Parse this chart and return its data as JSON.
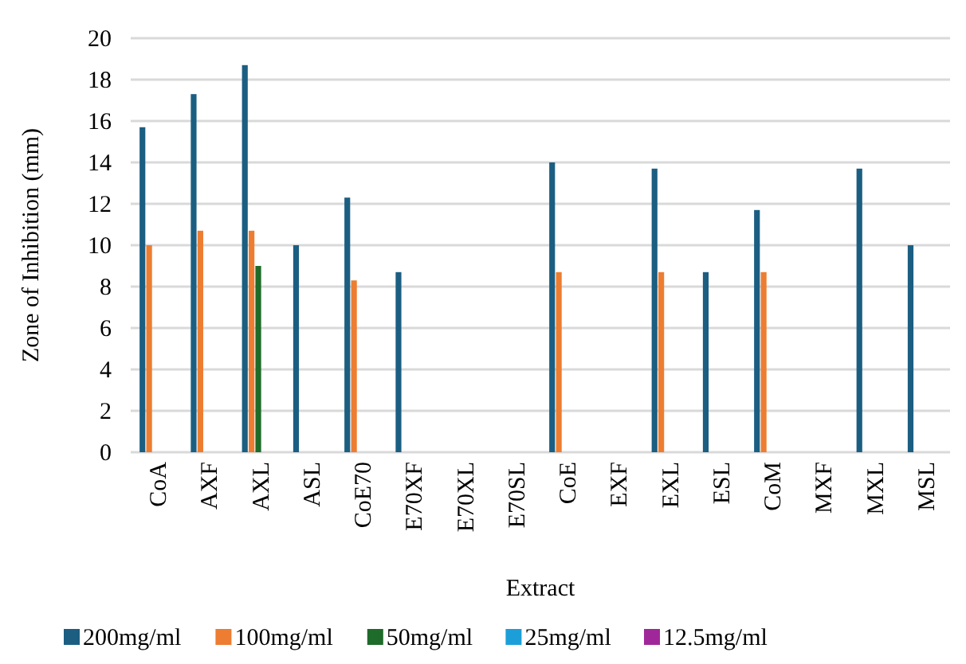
{
  "chart_data": {
    "type": "bar",
    "xlabel": "Extract",
    "ylabel": "Zone of Inhibition (mm)",
    "categories": [
      "CoA",
      "AXF",
      "AXL",
      "ASL",
      "CoE70",
      "E70XF",
      "E70XL",
      "E70SL",
      "CoE",
      "EXF",
      "EXL",
      "ESL",
      "CoM",
      "MXF",
      "MXL",
      "MSL"
    ],
    "series": [
      {
        "name": "200mg/ml",
        "color": "#1b5e82",
        "values": [
          15.7,
          17.3,
          18.7,
          10,
          12.3,
          8.7,
          0,
          0,
          14,
          0,
          13.7,
          8.7,
          11.7,
          0,
          13.7,
          10
        ]
      },
      {
        "name": "100mg/ml",
        "color": "#ed7d31",
        "values": [
          10,
          10.7,
          10.7,
          0,
          8.3,
          0,
          0,
          0,
          8.7,
          0,
          8.7,
          0,
          8.7,
          0,
          0,
          0
        ]
      },
      {
        "name": "50mg/ml",
        "color": "#1e6b2a",
        "values": [
          0,
          0,
          9,
          0,
          0,
          0,
          0,
          0,
          0,
          0,
          0,
          0,
          0,
          0,
          0,
          0
        ]
      },
      {
        "name": "25mg/ml",
        "color": "#1c9fd8",
        "values": [
          0,
          0,
          0,
          0,
          0,
          0,
          0,
          0,
          0,
          0,
          0,
          0,
          0,
          0,
          0,
          0
        ]
      },
      {
        "name": "12.5mg/ml",
        "color": "#a0279a",
        "values": [
          0,
          0,
          0,
          0,
          0,
          0,
          0,
          0,
          0,
          0,
          0,
          0,
          0,
          0,
          0,
          0
        ]
      }
    ],
    "ylim": [
      0,
      20
    ],
    "yticks": [
      0,
      2,
      4,
      6,
      8,
      10,
      12,
      14,
      16,
      18,
      20
    ],
    "grid": "y",
    "legend": "bottom"
  }
}
